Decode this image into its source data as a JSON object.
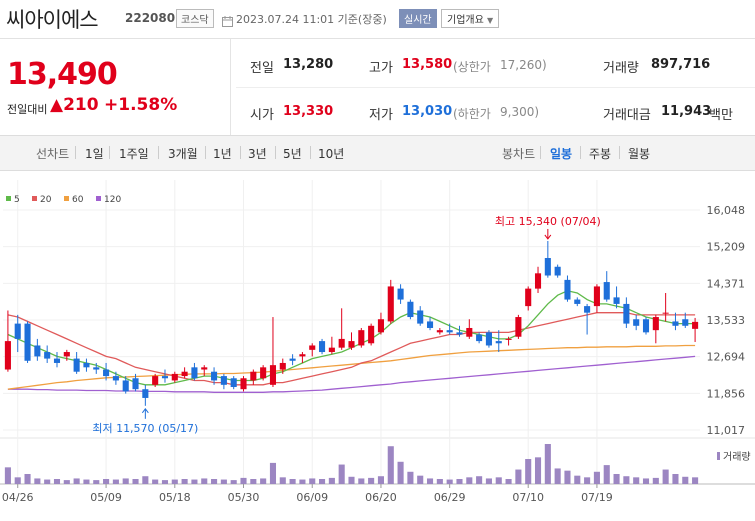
{
  "header": {
    "name": "씨아이에스",
    "code": "222080",
    "market": "코스닥",
    "time": "2023.07.24 11:01  기준(장중)",
    "realtime": "실시간",
    "corp_info": "기업개요"
  },
  "summary": {
    "price": "13,490",
    "change_label": "전일대비",
    "change": "▲210",
    "change_pct": "+1.58%",
    "prev_label": "전일",
    "prev": "13,280",
    "high_label": "고가",
    "high": "13,580",
    "upper_label": "(상한가",
    "upper": "17,260)",
    "volume_label": "거래량",
    "volume": "897,716",
    "open_label": "시가",
    "open": "13,330",
    "low_label": "저가",
    "low": "13,030",
    "lower_label": "(하한가",
    "lower": "9,300)",
    "amount_label": "거래대금",
    "amount": "11,943",
    "amount_unit": "백만"
  },
  "period": {
    "line_chart": "선차트",
    "buttons": [
      "1일",
      "1주일",
      "3개월",
      "1년",
      "3년",
      "5년",
      "10년"
    ],
    "candle_chart": "봉차트",
    "candle_buttons": [
      "일봉",
      "주봉",
      "월봉"
    ]
  },
  "colors": {
    "up": "#e0001b",
    "down": "#1e6fd9",
    "ma5": "#5fba4a",
    "ma20": "#e05a5a",
    "ma60": "#f0a040",
    "ma120": "#a060d0",
    "volume": "#9c86c2"
  },
  "chart_data": {
    "type": "candlestick",
    "legend": [
      "5",
      "20",
      "60",
      "120"
    ],
    "ylim": [
      11017,
      16048
    ],
    "y_ticks": [
      "16,048",
      "15,209",
      "14,371",
      "13,533",
      "12,694",
      "11,856",
      "11,017"
    ],
    "x_ticks": [
      "04/26",
      "05/09",
      "05/18",
      "05/30",
      "06/09",
      "06/20",
      "06/29",
      "07/10",
      "07/19"
    ],
    "x_tick_index": [
      1,
      10,
      17,
      24,
      31,
      38,
      45,
      53,
      60
    ],
    "candles": [
      {
        "o": 12400,
        "h": 13750,
        "l": 12350,
        "c": 13050
      },
      {
        "o": 13450,
        "h": 13650,
        "l": 12800,
        "c": 13100
      },
      {
        "o": 13450,
        "h": 13500,
        "l": 12550,
        "c": 12600
      },
      {
        "o": 12950,
        "h": 13100,
        "l": 12600,
        "c": 12700
      },
      {
        "o": 12800,
        "h": 12950,
        "l": 12550,
        "c": 12650
      },
      {
        "o": 12650,
        "h": 12800,
        "l": 12450,
        "c": 12550
      },
      {
        "o": 12700,
        "h": 12850,
        "l": 12600,
        "c": 12800
      },
      {
        "o": 12650,
        "h": 12800,
        "l": 12300,
        "c": 12350
      },
      {
        "o": 12550,
        "h": 12650,
        "l": 12350,
        "c": 12450
      },
      {
        "o": 12450,
        "h": 12550,
        "l": 12300,
        "c": 12400
      },
      {
        "o": 12400,
        "h": 12550,
        "l": 12150,
        "c": 12250
      },
      {
        "o": 12250,
        "h": 12350,
        "l": 12050,
        "c": 12150
      },
      {
        "o": 12150,
        "h": 12250,
        "l": 11850,
        "c": 11900
      },
      {
        "o": 12200,
        "h": 12300,
        "l": 11900,
        "c": 11950
      },
      {
        "o": 11950,
        "h": 12050,
        "l": 11570,
        "c": 11750
      },
      {
        "o": 12050,
        "h": 12300,
        "l": 12000,
        "c": 12250
      },
      {
        "o": 12250,
        "h": 12400,
        "l": 12100,
        "c": 12200
      },
      {
        "o": 12150,
        "h": 12350,
        "l": 12100,
        "c": 12300
      },
      {
        "o": 12250,
        "h": 12450,
        "l": 12200,
        "c": 12350
      },
      {
        "o": 12450,
        "h": 12550,
        "l": 12150,
        "c": 12200
      },
      {
        "o": 12400,
        "h": 12500,
        "l": 12250,
        "c": 12450
      },
      {
        "o": 12350,
        "h": 12450,
        "l": 12050,
        "c": 12150
      },
      {
        "o": 12250,
        "h": 12300,
        "l": 11950,
        "c": 12050
      },
      {
        "o": 12200,
        "h": 12250,
        "l": 11950,
        "c": 12000
      },
      {
        "o": 11950,
        "h": 12250,
        "l": 11900,
        "c": 12200
      },
      {
        "o": 12150,
        "h": 12400,
        "l": 12050,
        "c": 12350
      },
      {
        "o": 12200,
        "h": 12500,
        "l": 12150,
        "c": 12450
      },
      {
        "o": 12050,
        "h": 13600,
        "l": 12000,
        "c": 12500
      },
      {
        "o": 12400,
        "h": 12650,
        "l": 12300,
        "c": 12550
      },
      {
        "o": 12650,
        "h": 12750,
        "l": 12500,
        "c": 12600
      },
      {
        "o": 12700,
        "h": 12800,
        "l": 12550,
        "c": 12750
      },
      {
        "o": 12850,
        "h": 13000,
        "l": 12700,
        "c": 12950
      },
      {
        "o": 13050,
        "h": 13100,
        "l": 12750,
        "c": 12800
      },
      {
        "o": 12800,
        "h": 13150,
        "l": 12750,
        "c": 12900
      },
      {
        "o": 12900,
        "h": 13800,
        "l": 12850,
        "c": 13100
      },
      {
        "o": 12900,
        "h": 13250,
        "l": 12850,
        "c": 13050
      },
      {
        "o": 12950,
        "h": 13350,
        "l": 12900,
        "c": 13300
      },
      {
        "o": 13000,
        "h": 13450,
        "l": 12950,
        "c": 13400
      },
      {
        "o": 13250,
        "h": 13700,
        "l": 13200,
        "c": 13550
      },
      {
        "o": 13500,
        "h": 14450,
        "l": 13450,
        "c": 14300
      },
      {
        "o": 14250,
        "h": 14350,
        "l": 13900,
        "c": 14000
      },
      {
        "o": 13950,
        "h": 14000,
        "l": 13550,
        "c": 13600
      },
      {
        "o": 13750,
        "h": 13850,
        "l": 13400,
        "c": 13450
      },
      {
        "o": 13500,
        "h": 13600,
        "l": 13300,
        "c": 13350
      },
      {
        "o": 13250,
        "h": 13350,
        "l": 13200,
        "c": 13300
      },
      {
        "o": 13300,
        "h": 13450,
        "l": 13200,
        "c": 13250
      },
      {
        "o": 13250,
        "h": 13400,
        "l": 13150,
        "c": 13200
      },
      {
        "o": 13150,
        "h": 13550,
        "l": 13100,
        "c": 13350
      },
      {
        "o": 13200,
        "h": 13250,
        "l": 13000,
        "c": 13050
      },
      {
        "o": 13250,
        "h": 13300,
        "l": 12900,
        "c": 12950
      },
      {
        "o": 13050,
        "h": 13300,
        "l": 12800,
        "c": 13000
      },
      {
        "o": 13100,
        "h": 13150,
        "l": 12950,
        "c": 13100
      },
      {
        "o": 13150,
        "h": 13650,
        "l": 13100,
        "c": 13600
      },
      {
        "o": 13850,
        "h": 14300,
        "l": 13750,
        "c": 14250
      },
      {
        "o": 14250,
        "h": 14750,
        "l": 14150,
        "c": 14600
      },
      {
        "o": 14950,
        "h": 15340,
        "l": 14500,
        "c": 14550
      },
      {
        "o": 14750,
        "h": 14800,
        "l": 14500,
        "c": 14550
      },
      {
        "o": 14450,
        "h": 14550,
        "l": 13950,
        "c": 14000
      },
      {
        "o": 14000,
        "h": 14050,
        "l": 13850,
        "c": 13900
      },
      {
        "o": 13850,
        "h": 13900,
        "l": 13200,
        "c": 13700
      },
      {
        "o": 13850,
        "h": 14350,
        "l": 13700,
        "c": 14300
      },
      {
        "o": 14400,
        "h": 14650,
        "l": 13950,
        "c": 14000
      },
      {
        "o": 14050,
        "h": 14300,
        "l": 13800,
        "c": 13900
      },
      {
        "o": 13900,
        "h": 14050,
        "l": 13350,
        "c": 13450
      },
      {
        "o": 13550,
        "h": 13650,
        "l": 13300,
        "c": 13400
      },
      {
        "o": 13550,
        "h": 13600,
        "l": 13200,
        "c": 13250
      },
      {
        "o": 13300,
        "h": 13650,
        "l": 13000,
        "c": 13600
      },
      {
        "o": 13700,
        "h": 14150,
        "l": 13500,
        "c": 13700
      },
      {
        "o": 13500,
        "h": 13700,
        "l": 13300,
        "c": 13400
      },
      {
        "o": 13550,
        "h": 13700,
        "l": 13350,
        "c": 13400
      },
      {
        "o": 13330,
        "h": 13580,
        "l": 13030,
        "c": 13490
      }
    ],
    "ma5": [
      13200,
      13100,
      13000,
      12900,
      12800,
      12700,
      12650,
      12600,
      12550,
      12500,
      12400,
      12300,
      12200,
      12100,
      12050,
      12050,
      12050,
      12100,
      12150,
      12200,
      12250,
      12250,
      12200,
      12150,
      12150,
      12150,
      12200,
      12300,
      12350,
      12450,
      12550,
      12650,
      12700,
      12750,
      12800,
      12900,
      13000,
      13100,
      13250,
      13450,
      13600,
      13700,
      13650,
      13600,
      13500,
      13400,
      13300,
      13250,
      13200,
      13150,
      13100,
      13100,
      13200,
      13400,
      13650,
      13900,
      14100,
      14200,
      14150,
      14000,
      13900,
      13900,
      13850,
      13800,
      13700,
      13600,
      13550,
      13500,
      13450,
      13450,
      13450
    ],
    "ma20": [
      13650,
      13600,
      13500,
      13400,
      13300,
      13200,
      13100,
      13000,
      12900,
      12800,
      12700,
      12650,
      12550,
      12450,
      12400,
      12350,
      12300,
      12250,
      12200,
      12150,
      12150,
      12100,
      12100,
      12050,
      12050,
      12050,
      12050,
      12100,
      12100,
      12150,
      12200,
      12250,
      12300,
      12350,
      12400,
      12450,
      12550,
      12600,
      12700,
      12800,
      12900,
      13000,
      13050,
      13100,
      13150,
      13200,
      13200,
      13250,
      13250,
      13250,
      13250,
      13250,
      13300,
      13350,
      13400,
      13450,
      13500,
      13550,
      13600,
      13650,
      13700,
      13700,
      13700,
      13700,
      13650,
      13650,
      13650,
      13650,
      13650,
      13650,
      13650
    ],
    "ma60": [
      11950,
      11980,
      12010,
      12040,
      12070,
      12100,
      12120,
      12150,
      12170,
      12190,
      12210,
      12220,
      12230,
      12240,
      12250,
      12260,
      12270,
      12280,
      12290,
      12300,
      12300,
      12300,
      12310,
      12310,
      12320,
      12330,
      12340,
      12360,
      12380,
      12400,
      12420,
      12440,
      12460,
      12480,
      12500,
      12520,
      12540,
      12560,
      12580,
      12600,
      12630,
      12660,
      12690,
      12720,
      12740,
      12760,
      12780,
      12800,
      12810,
      12820,
      12830,
      12840,
      12850,
      12860,
      12870,
      12880,
      12890,
      12900,
      12900,
      12910,
      12910,
      12920,
      12920,
      12920,
      12930,
      12930,
      12930,
      12940,
      12940,
      12950,
      12950
    ],
    "ma120": [
      11950,
      11950,
      11950,
      11940,
      11940,
      11930,
      11930,
      11930,
      11920,
      11920,
      11920,
      11910,
      11910,
      11910,
      11900,
      11900,
      11900,
      11890,
      11890,
      11890,
      11890,
      11880,
      11880,
      11880,
      11880,
      11880,
      11880,
      11890,
      11890,
      11900,
      11910,
      11920,
      11930,
      11950,
      11970,
      11990,
      12010,
      12030,
      12050,
      12070,
      12100,
      12120,
      12140,
      12160,
      12180,
      12200,
      12220,
      12240,
      12260,
      12280,
      12300,
      12320,
      12340,
      12360,
      12380,
      12400,
      12420,
      12440,
      12460,
      12480,
      12500,
      12520,
      12540,
      12560,
      12580,
      12600,
      12620,
      12640,
      12660,
      12680,
      12700
    ],
    "volume": [
      30,
      12,
      18,
      10,
      8,
      9,
      7,
      10,
      8,
      7,
      9,
      8,
      10,
      9,
      14,
      8,
      7,
      8,
      9,
      8,
      10,
      9,
      8,
      7,
      11,
      9,
      10,
      38,
      12,
      9,
      8,
      10,
      9,
      11,
      35,
      13,
      10,
      11,
      14,
      68,
      40,
      22,
      15,
      10,
      9,
      8,
      9,
      12,
      14,
      10,
      12,
      9,
      26,
      45,
      48,
      72,
      28,
      24,
      15,
      12,
      22,
      34,
      18,
      14,
      12,
      10,
      11,
      26,
      18,
      13,
      12
    ],
    "annotations": {
      "max_label": "최고 15,340 (07/04)",
      "max_index": 55,
      "min_label": "최저 11,570 (05/17)",
      "min_index": 14
    },
    "volume_label": "거래량"
  }
}
